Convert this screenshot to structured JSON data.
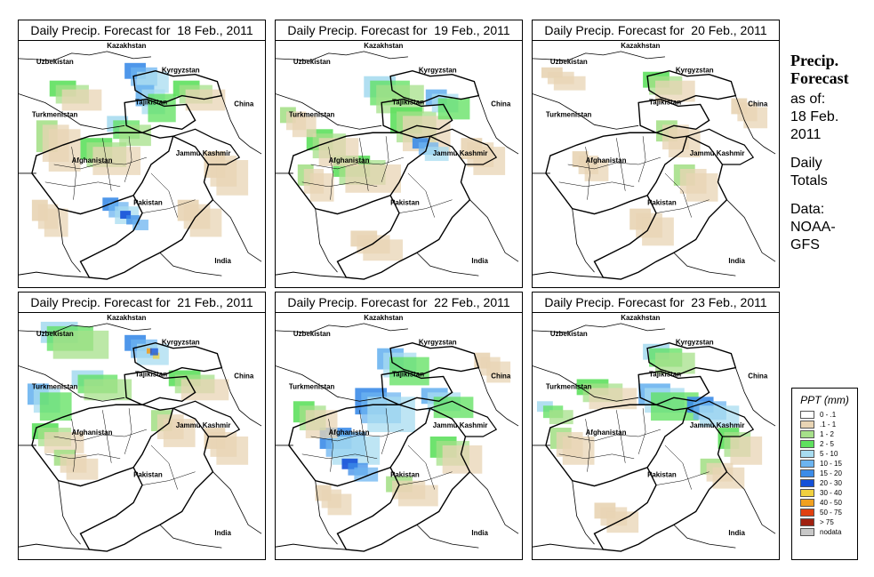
{
  "panels": [
    {
      "title": "Daily Precip. Forecast for  18 Feb., 2011",
      "pattern": "p1"
    },
    {
      "title": "Daily Precip. Forecast for  19 Feb., 2011",
      "pattern": "p2"
    },
    {
      "title": "Daily Precip. Forecast for  20 Feb., 2011",
      "pattern": "p3"
    },
    {
      "title": "Daily Precip. Forecast for  21 Feb., 2011",
      "pattern": "p4"
    },
    {
      "title": "Daily Precip. Forecast for  22 Feb., 2011",
      "pattern": "p5"
    },
    {
      "title": "Daily Precip. Forecast for  23 Feb., 2011",
      "pattern": "p6"
    }
  ],
  "map_labels": {
    "kazakhstan": "Kazakhstan",
    "uzbekistan": "Uzbekistan",
    "kyrgyzstan": "Kyrgyzstan",
    "tajikistan": "Tajikistan",
    "china": "China",
    "turkmenistan": "Turkmenistan",
    "afghanistan": "Afghanistan",
    "jammu_kashmir": "Jammu Kashmir",
    "pakistan": "Pakistan",
    "india": "India"
  },
  "sidebar": {
    "title_line1": "Precip.",
    "title_line2": "Forecast",
    "asof_line1": "as of:",
    "asof_line2": "18 Feb.",
    "asof_line3": "2011",
    "daily_line1": "Daily",
    "daily_line2": "Totals",
    "data_line1": "Data:",
    "data_line2": "NOAA-",
    "data_line3": "GFS"
  },
  "legend": {
    "title": "PPT (mm)",
    "items": [
      {
        "label": "0 - .1",
        "color": "#ffffff"
      },
      {
        "label": ".1 - 1",
        "color": "#e8d4b4"
      },
      {
        "label": "1 - 2",
        "color": "#a6e08a"
      },
      {
        "label": "2 - 5",
        "color": "#5ee05e"
      },
      {
        "label": "5 - 10",
        "color": "#a8dcf0"
      },
      {
        "label": "10 - 15",
        "color": "#6cb4f0"
      },
      {
        "label": "15 - 20",
        "color": "#3c8ce8"
      },
      {
        "label": "20 - 30",
        "color": "#1450d8"
      },
      {
        "label": "30 - 40",
        "color": "#f0d040"
      },
      {
        "label": "40 - 50",
        "color": "#f0a020"
      },
      {
        "label": "50 - 75",
        "color": "#e04010"
      },
      {
        "label": "> 75",
        "color": "#a02010"
      },
      {
        "label": "nodata",
        "color": "#c8c8c8"
      }
    ]
  }
}
